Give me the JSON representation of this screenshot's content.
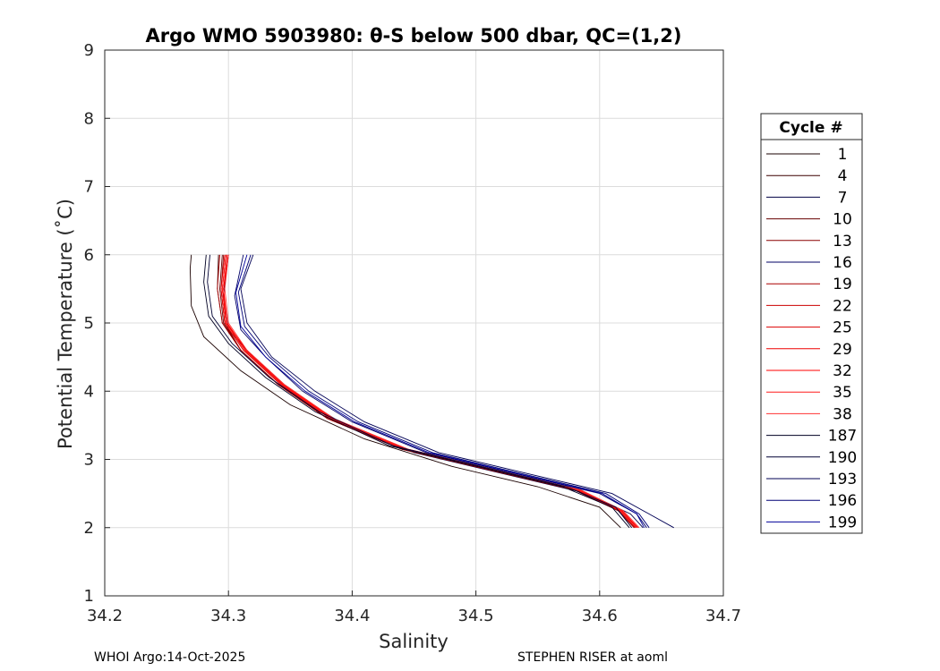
{
  "chart_data": {
    "type": "line",
    "title": "Argo WMO 5903980: θ-S below 500 dbar,  QC=(1,2)",
    "xlabel": "Salinity",
    "ylabel": "Potential Temperature (˚C)",
    "xlim": [
      34.2,
      34.7
    ],
    "ylim": [
      1,
      9
    ],
    "xticks": [
      "34.2",
      "34.3",
      "34.4",
      "34.5",
      "34.6",
      "34.7"
    ],
    "yticks": [
      "1",
      "2",
      "3",
      "4",
      "5",
      "6",
      "7",
      "8",
      "9"
    ],
    "grid": true,
    "legend": {
      "title": "Cycle #",
      "placement": "right",
      "entries": [
        "1",
        "4",
        "7",
        "10",
        "13",
        "16",
        "19",
        "22",
        "25",
        "29",
        "32",
        "35",
        "38",
        "187",
        "190",
        "193",
        "196",
        "199"
      ]
    },
    "series": [
      {
        "name": "1",
        "color": "#1a0000",
        "x": [
          34.27,
          34.269,
          34.27,
          34.28,
          34.31,
          34.35,
          34.41,
          34.48,
          34.55,
          34.6,
          34.617
        ],
        "y": [
          6.0,
          5.8,
          5.25,
          4.8,
          4.3,
          3.8,
          3.3,
          2.9,
          2.6,
          2.3,
          2.0
        ]
      },
      {
        "name": "4",
        "color": "#3d0000",
        "x": [
          34.292,
          34.291,
          34.295,
          34.31,
          34.34,
          34.38,
          34.44,
          34.51,
          34.58,
          34.615,
          34.628
        ],
        "y": [
          6.0,
          5.5,
          5.0,
          4.6,
          4.1,
          3.6,
          3.15,
          2.85,
          2.55,
          2.25,
          2.0
        ]
      },
      {
        "name": "7",
        "color": "#000044",
        "x": [
          34.3,
          34.296,
          34.3,
          34.32,
          34.35,
          34.39,
          34.45,
          34.52,
          34.59,
          34.625,
          34.635
        ],
        "y": [
          6.0,
          5.4,
          4.9,
          4.5,
          4.0,
          3.55,
          3.1,
          2.8,
          2.5,
          2.2,
          2.0
        ]
      },
      {
        "name": "10",
        "color": "#660000",
        "x": [
          34.295,
          34.293,
          34.296,
          34.31,
          34.34,
          34.38,
          34.44,
          34.51,
          34.58,
          34.615,
          34.628
        ],
        "y": [
          6.0,
          5.5,
          5.0,
          4.6,
          4.1,
          3.6,
          3.15,
          2.85,
          2.55,
          2.25,
          2.0
        ]
      },
      {
        "name": "13",
        "color": "#8a0000",
        "x": [
          34.296,
          34.294,
          34.297,
          34.31,
          34.34,
          34.38,
          34.44,
          34.51,
          34.58,
          34.615,
          34.628
        ],
        "y": [
          6.0,
          5.5,
          5.0,
          4.6,
          4.1,
          3.6,
          3.15,
          2.85,
          2.55,
          2.25,
          2.0
        ]
      },
      {
        "name": "16",
        "color": "#000066",
        "x": [
          34.312,
          34.305,
          34.31,
          34.33,
          34.36,
          34.4,
          34.46,
          34.53,
          34.6,
          34.63,
          34.638
        ],
        "y": [
          6.0,
          5.4,
          4.9,
          4.5,
          4.0,
          3.55,
          3.1,
          2.8,
          2.5,
          2.2,
          2.0
        ]
      },
      {
        "name": "19",
        "color": "#aa0000",
        "x": [
          34.293,
          34.291,
          34.295,
          34.31,
          34.34,
          34.38,
          34.44,
          34.51,
          34.58,
          34.615,
          34.628
        ],
        "y": [
          6.0,
          5.5,
          5.0,
          4.6,
          4.1,
          3.6,
          3.15,
          2.85,
          2.55,
          2.25,
          2.0
        ]
      },
      {
        "name": "22",
        "color": "#cc0000",
        "x": [
          34.298,
          34.295,
          34.298,
          34.315,
          34.345,
          34.385,
          34.445,
          34.515,
          34.585,
          34.618,
          34.63
        ],
        "y": [
          6.0,
          5.5,
          5.0,
          4.6,
          4.1,
          3.6,
          3.15,
          2.85,
          2.55,
          2.25,
          2.0
        ]
      },
      {
        "name": "25",
        "color": "#dd0000",
        "x": [
          34.297,
          34.294,
          34.297,
          34.312,
          34.342,
          34.382,
          34.442,
          34.512,
          34.582,
          34.616,
          34.629
        ],
        "y": [
          6.0,
          5.5,
          5.0,
          4.6,
          4.1,
          3.6,
          3.15,
          2.85,
          2.55,
          2.25,
          2.0
        ]
      },
      {
        "name": "29",
        "color": "#ee0000",
        "x": [
          34.299,
          34.296,
          34.298,
          34.313,
          34.343,
          34.383,
          34.443,
          34.513,
          34.583,
          34.617,
          34.63
        ],
        "y": [
          6.0,
          5.5,
          5.0,
          4.6,
          4.1,
          3.6,
          3.15,
          2.85,
          2.55,
          2.25,
          2.0
        ]
      },
      {
        "name": "32",
        "color": "#ff0000",
        "x": [
          34.3,
          34.296,
          34.299,
          34.314,
          34.344,
          34.384,
          34.444,
          34.514,
          34.584,
          34.618,
          34.631
        ],
        "y": [
          6.0,
          5.5,
          5.0,
          4.6,
          4.1,
          3.6,
          3.15,
          2.85,
          2.55,
          2.25,
          2.0
        ]
      },
      {
        "name": "35",
        "color": "#ff1a1a",
        "x": [
          34.298,
          34.295,
          34.298,
          34.313,
          34.343,
          34.383,
          34.443,
          34.513,
          34.583,
          34.617,
          34.63
        ],
        "y": [
          6.0,
          5.5,
          5.0,
          4.6,
          4.1,
          3.6,
          3.15,
          2.85,
          2.55,
          2.25,
          2.0
        ]
      },
      {
        "name": "38",
        "color": "#ff3333",
        "x": [
          34.3,
          34.297,
          34.3,
          34.315,
          34.345,
          34.385,
          34.445,
          34.515,
          34.585,
          34.619,
          34.632
        ],
        "y": [
          6.0,
          5.5,
          5.0,
          4.6,
          4.1,
          3.6,
          3.15,
          2.85,
          2.55,
          2.25,
          2.0
        ]
      },
      {
        "name": "187",
        "color": "#000022",
        "x": [
          34.282,
          34.28,
          34.284,
          34.3,
          34.33,
          34.37,
          34.43,
          34.5,
          34.57,
          34.61,
          34.624
        ],
        "y": [
          6.0,
          5.6,
          5.1,
          4.7,
          4.2,
          3.7,
          3.2,
          2.9,
          2.6,
          2.3,
          2.0
        ]
      },
      {
        "name": "190",
        "color": "#000033",
        "x": [
          34.285,
          34.283,
          34.287,
          34.303,
          34.333,
          34.373,
          34.433,
          34.503,
          34.573,
          34.613,
          34.626
        ],
        "y": [
          6.0,
          5.6,
          5.1,
          4.7,
          4.2,
          3.7,
          3.2,
          2.9,
          2.6,
          2.3,
          2.0
        ]
      },
      {
        "name": "193",
        "color": "#000055",
        "x": [
          34.32,
          34.31,
          34.315,
          34.335,
          34.37,
          34.41,
          34.47,
          34.54,
          34.61,
          34.64,
          34.66
        ],
        "y": [
          6.0,
          5.5,
          5.0,
          4.5,
          4.0,
          3.55,
          3.1,
          2.8,
          2.5,
          2.2,
          2.0
        ]
      },
      {
        "name": "196",
        "color": "#000077",
        "x": [
          34.318,
          34.308,
          34.313,
          34.333,
          34.365,
          34.405,
          34.465,
          34.535,
          34.605,
          34.632,
          34.64
        ],
        "y": [
          6.0,
          5.45,
          4.95,
          4.5,
          4.0,
          3.55,
          3.1,
          2.8,
          2.5,
          2.2,
          2.0
        ]
      },
      {
        "name": "199",
        "color": "#000099",
        "x": [
          34.315,
          34.306,
          34.31,
          34.33,
          34.362,
          34.402,
          34.462,
          34.532,
          34.602,
          34.63,
          34.636
        ],
        "y": [
          6.0,
          5.45,
          4.95,
          4.5,
          4.0,
          3.55,
          3.1,
          2.8,
          2.5,
          2.2,
          2.0
        ]
      }
    ]
  },
  "footer": {
    "left": "WHOI Argo:14-Oct-2025",
    "right": "STEPHEN RISER at aoml"
  }
}
